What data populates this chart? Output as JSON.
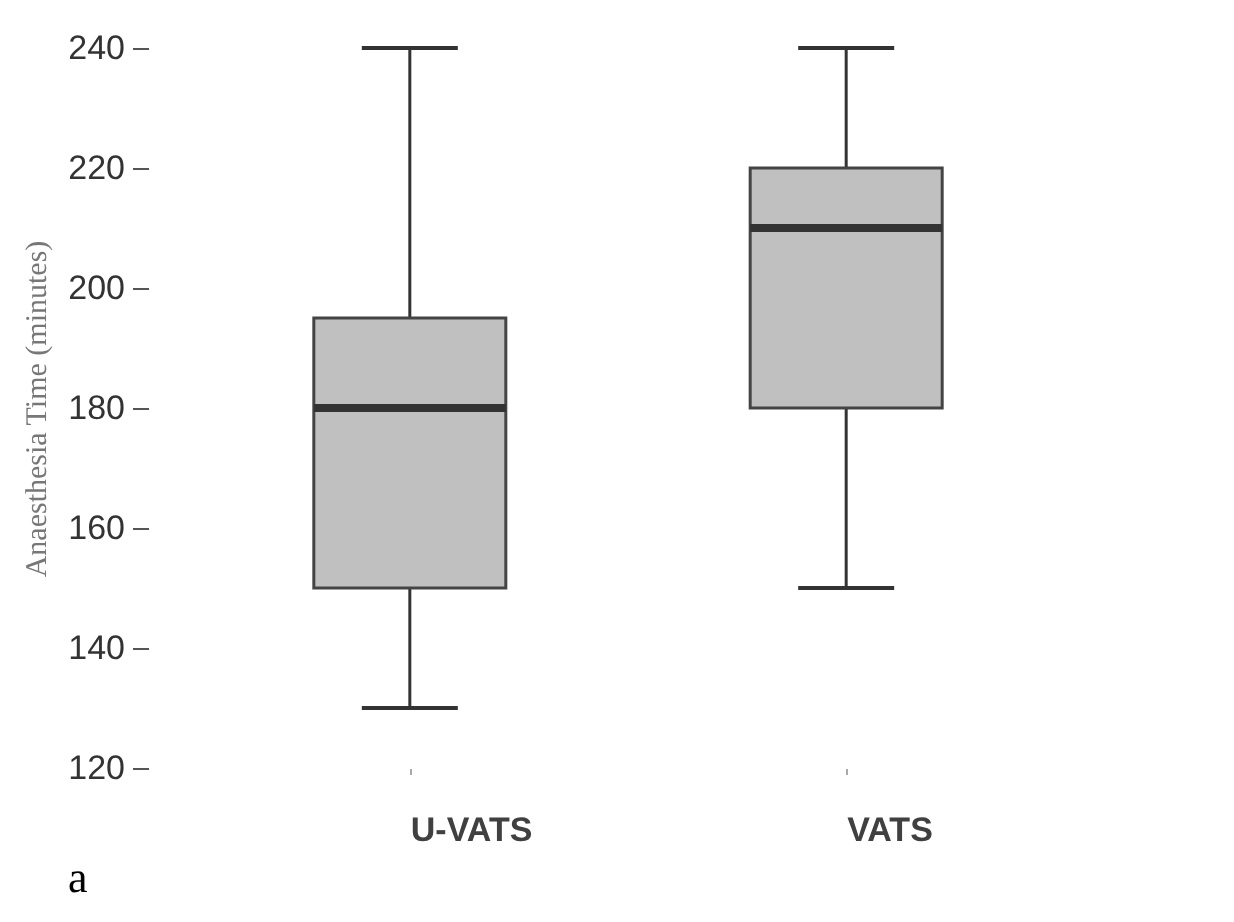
{
  "chart_data": {
    "type": "box",
    "ylabel": "Anaesthesia Time (minutes)",
    "categories": [
      "U-VATS",
      "VATS"
    ],
    "boxes": [
      {
        "low": 130,
        "q1": 150,
        "median": 180,
        "q3": 195,
        "high": 240
      },
      {
        "low": 150,
        "q1": 180,
        "median": 210,
        "q3": 220,
        "high": 240
      }
    ],
    "color": "#c0c0c0",
    "ylim": [
      120,
      240
    ],
    "yticks": [
      120,
      140,
      160,
      180,
      200,
      220,
      240
    ],
    "grid": false,
    "annotations": [
      "a"
    ]
  }
}
